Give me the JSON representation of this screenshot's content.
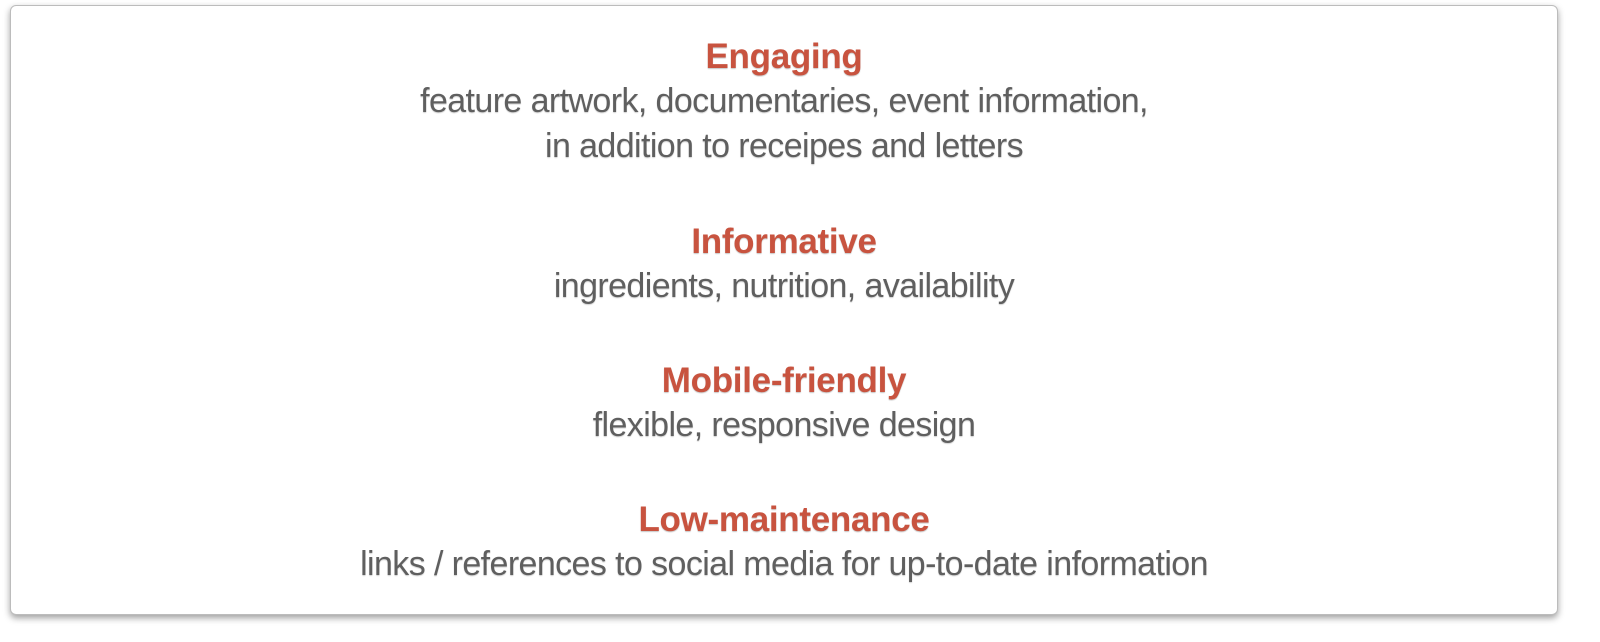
{
  "colors": {
    "heading": "#c8533f",
    "description": "#5f5f5f",
    "background": "#ffffff"
  },
  "sections": [
    {
      "heading": "Engaging",
      "lines": [
        "feature artwork, documentaries, event information,",
        "in addition to receipes and letters"
      ]
    },
    {
      "heading": "Informative",
      "lines": [
        "ingredients, nutrition, availability"
      ]
    },
    {
      "heading": "Mobile-friendly",
      "lines": [
        "flexible, responsive design"
      ]
    },
    {
      "heading": "Low-maintenance",
      "lines": [
        "links / references to social media for up-to-date information"
      ]
    }
  ]
}
